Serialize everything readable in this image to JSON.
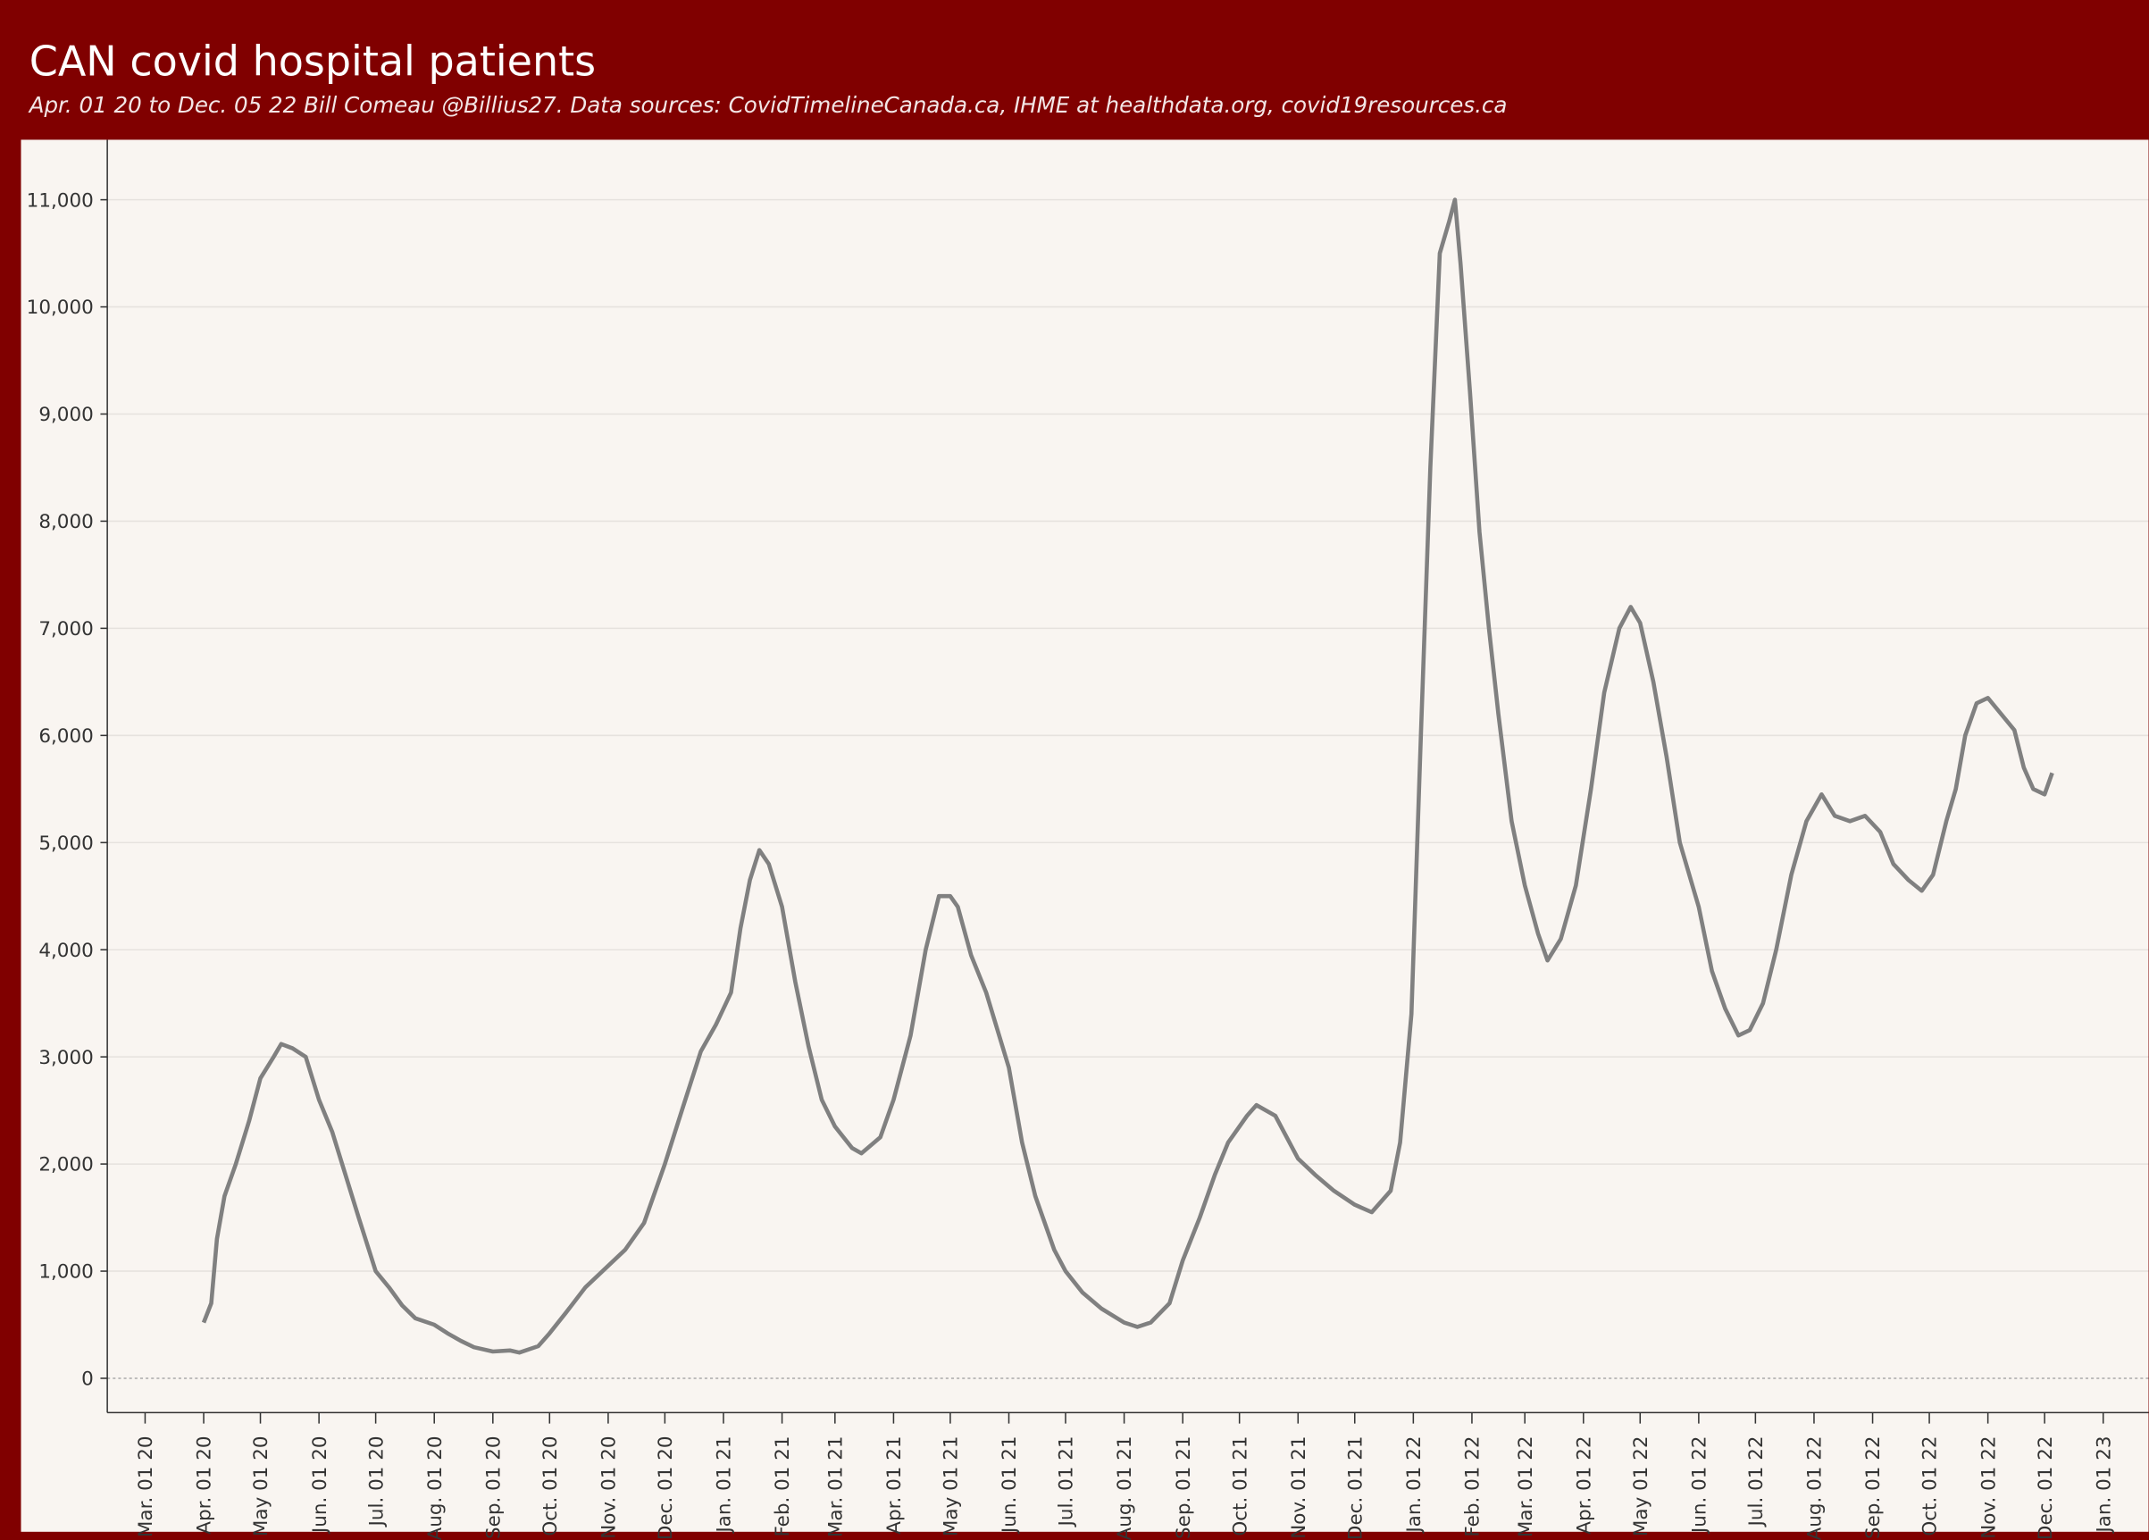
{
  "chart_data": {
    "type": "line",
    "title": "CAN covid hospital patients",
    "subtitle": "Apr. 01 20 to Dec. 05 22 Bill Comeau @Billius27. Data sources:  CovidTimelineCanada.ca, IHME at healthdata.org, covid19resources.ca",
    "x": [
      "2020-04-01",
      "2020-04-05",
      "2020-04-08",
      "2020-04-12",
      "2020-04-18",
      "2020-04-25",
      "2020-05-01",
      "2020-05-08",
      "2020-05-12",
      "2020-05-18",
      "2020-05-25",
      "2020-06-01",
      "2020-06-08",
      "2020-06-15",
      "2020-06-22",
      "2020-07-01",
      "2020-07-08",
      "2020-07-15",
      "2020-07-22",
      "2020-08-01",
      "2020-08-08",
      "2020-08-15",
      "2020-08-22",
      "2020-09-01",
      "2020-09-10",
      "2020-09-15",
      "2020-09-25",
      "2020-10-01",
      "2020-10-10",
      "2020-10-20",
      "2020-11-01",
      "2020-11-10",
      "2020-11-20",
      "2020-12-01",
      "2020-12-10",
      "2020-12-20",
      "2020-12-28",
      "2021-01-05",
      "2021-01-10",
      "2021-01-15",
      "2021-01-20",
      "2021-01-25",
      "2021-02-01",
      "2021-02-08",
      "2021-02-15",
      "2021-02-22",
      "2021-03-01",
      "2021-03-10",
      "2021-03-15",
      "2021-03-25",
      "2021-04-01",
      "2021-04-10",
      "2021-04-18",
      "2021-04-25",
      "2021-05-01",
      "2021-05-05",
      "2021-05-12",
      "2021-05-20",
      "2021-06-01",
      "2021-06-08",
      "2021-06-15",
      "2021-06-25",
      "2021-07-01",
      "2021-07-10",
      "2021-07-20",
      "2021-08-01",
      "2021-08-08",
      "2021-08-15",
      "2021-08-25",
      "2021-09-01",
      "2021-09-10",
      "2021-09-18",
      "2021-09-25",
      "2021-10-01",
      "2021-10-05",
      "2021-10-10",
      "2021-10-20",
      "2021-11-01",
      "2021-11-10",
      "2021-11-20",
      "2021-12-01",
      "2021-12-10",
      "2021-12-20",
      "2021-12-25",
      "2021-12-31",
      "2022-01-05",
      "2022-01-10",
      "2022-01-15",
      "2022-01-20",
      "2022-01-23",
      "2022-01-26",
      "2022-01-31",
      "2022-02-05",
      "2022-02-10",
      "2022-02-15",
      "2022-02-22",
      "2022-03-01",
      "2022-03-08",
      "2022-03-13",
      "2022-03-20",
      "2022-03-28",
      "2022-04-05",
      "2022-04-12",
      "2022-04-20",
      "2022-04-26",
      "2022-05-01",
      "2022-05-08",
      "2022-05-15",
      "2022-05-22",
      "2022-06-01",
      "2022-06-08",
      "2022-06-15",
      "2022-06-22",
      "2022-06-28",
      "2022-07-05",
      "2022-07-12",
      "2022-07-20",
      "2022-07-28",
      "2022-08-05",
      "2022-08-12",
      "2022-08-20",
      "2022-08-28",
      "2022-09-05",
      "2022-09-12",
      "2022-09-20",
      "2022-09-27",
      "2022-10-03",
      "2022-10-10",
      "2022-10-15",
      "2022-10-20",
      "2022-10-26",
      "2022-11-01",
      "2022-11-08",
      "2022-11-15",
      "2022-11-20",
      "2022-11-25",
      "2022-12-01",
      "2022-12-05"
    ],
    "series": [
      {
        "color": "#808080",
        "values": [
          520,
          700,
          1300,
          1700,
          2000,
          2400,
          2800,
          3000,
          3120,
          3080,
          3000,
          2600,
          2300,
          1900,
          1500,
          1000,
          850,
          680,
          560,
          500,
          420,
          350,
          290,
          250,
          260,
          240,
          300,
          420,
          620,
          850,
          1050,
          1200,
          1450,
          2000,
          2500,
          3050,
          3300,
          3600,
          4200,
          4650,
          4930,
          4800,
          4400,
          3700,
          3100,
          2600,
          2350,
          2150,
          2100,
          2250,
          2600,
          3200,
          4000,
          4500,
          4500,
          4400,
          3950,
          3600,
          2900,
          2200,
          1700,
          1200,
          1000,
          800,
          650,
          520,
          480,
          520,
          700,
          1100,
          1500,
          1900,
          2200,
          2350,
          2450,
          2550,
          2450,
          2050,
          1900,
          1750,
          1620,
          1550,
          1750,
          2200,
          3400,
          6000,
          8500,
          10500,
          10800,
          11000,
          10400,
          9200,
          7900,
          7000,
          6200,
          5200,
          4600,
          4150,
          3900,
          4100,
          4600,
          5500,
          6400,
          7000,
          7200,
          7050,
          6500,
          5800,
          5000,
          4400,
          3800,
          3450,
          3200,
          3250,
          3500,
          4000,
          4700,
          5200,
          5450,
          5250,
          5200,
          5250,
          5100,
          4800,
          4650,
          4550,
          4700,
          5200,
          5500,
          6000,
          6300,
          6350,
          6200,
          6050,
          5700,
          5500,
          5450,
          5650
        ]
      }
    ],
    "xlim": [
      "2020-02-10",
      "2023-01-25"
    ],
    "xticks": [
      {
        "value": "2020-03-01",
        "label": "Mar. 01 20"
      },
      {
        "value": "2020-04-01",
        "label": "Apr. 01 20"
      },
      {
        "value": "2020-05-01",
        "label": "May 01 20"
      },
      {
        "value": "2020-06-01",
        "label": "Jun. 01 20"
      },
      {
        "value": "2020-07-01",
        "label": "Jul. 01 20"
      },
      {
        "value": "2020-08-01",
        "label": "Aug. 01 20"
      },
      {
        "value": "2020-09-01",
        "label": "Sep. 01 20"
      },
      {
        "value": "2020-10-01",
        "label": "Oct. 01 20"
      },
      {
        "value": "2020-11-01",
        "label": "Nov. 01 20"
      },
      {
        "value": "2020-12-01",
        "label": "Dec. 01 20"
      },
      {
        "value": "2021-01-01",
        "label": "Jan. 01 21"
      },
      {
        "value": "2021-02-01",
        "label": "Feb. 01 21"
      },
      {
        "value": "2021-03-01",
        "label": "Mar. 01 21"
      },
      {
        "value": "2021-04-01",
        "label": "Apr. 01 21"
      },
      {
        "value": "2021-05-01",
        "label": "May 01 21"
      },
      {
        "value": "2021-06-01",
        "label": "Jun. 01 21"
      },
      {
        "value": "2021-07-01",
        "label": "Jul. 01 21"
      },
      {
        "value": "2021-08-01",
        "label": "Aug. 01 21"
      },
      {
        "value": "2021-09-01",
        "label": "Sep. 01 21"
      },
      {
        "value": "2021-10-01",
        "label": "Oct. 01 21"
      },
      {
        "value": "2021-11-01",
        "label": "Nov. 01 21"
      },
      {
        "value": "2021-12-01",
        "label": "Dec. 01 21"
      },
      {
        "value": "2022-01-01",
        "label": "Jan. 01 22"
      },
      {
        "value": "2022-02-01",
        "label": "Feb. 01 22"
      },
      {
        "value": "2022-03-01",
        "label": "Mar. 01 22"
      },
      {
        "value": "2022-04-01",
        "label": "Apr. 01 22"
      },
      {
        "value": "2022-05-01",
        "label": "May 01 22"
      },
      {
        "value": "2022-06-01",
        "label": "Jun. 01 22"
      },
      {
        "value": "2022-07-01",
        "label": "Jul. 01 22"
      },
      {
        "value": "2022-08-01",
        "label": "Aug. 01 22"
      },
      {
        "value": "2022-09-01",
        "label": "Sep. 01 22"
      },
      {
        "value": "2022-10-01",
        "label": "Oct. 01 22"
      },
      {
        "value": "2022-11-01",
        "label": "Nov. 01 22"
      },
      {
        "value": "2022-12-01",
        "label": "Dec. 01 22"
      },
      {
        "value": "2023-01-01",
        "label": "Jan. 01 23"
      }
    ],
    "ylim": [
      -320,
      11560
    ],
    "yticks": [
      0,
      {
        "value": 1000,
        "label": "1,000"
      },
      {
        "value": 2000,
        "label": "2,000"
      },
      {
        "value": 3000,
        "label": "3,000"
      },
      {
        "value": 4000,
        "label": "4,000"
      },
      {
        "value": 5000,
        "label": "5,000"
      },
      {
        "value": 6000,
        "label": "6,000"
      },
      {
        "value": 7000,
        "label": "7,000"
      },
      {
        "value": 8000,
        "label": "8,000"
      },
      {
        "value": 9000,
        "label": "9,000"
      },
      {
        "value": 10000,
        "label": "10,000"
      },
      {
        "value": 11000,
        "label": "11,000"
      }
    ],
    "grid": true
  }
}
